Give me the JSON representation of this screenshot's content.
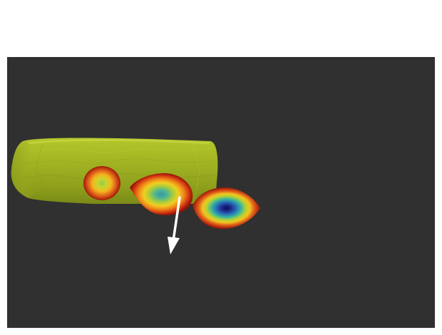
{
  "scene": {
    "background_color": "#303030",
    "page_color": "#ffffff",
    "cylinder_color": "#a3b523",
    "arrow_color": "#ffffff",
    "heatmap_colormap": [
      "#8b0000",
      "#d23a12",
      "#f08a1a",
      "#f5d21e",
      "#9ccc3a",
      "#35b7a0",
      "#2a8fbf",
      "#233e9a",
      "#101060"
    ]
  }
}
